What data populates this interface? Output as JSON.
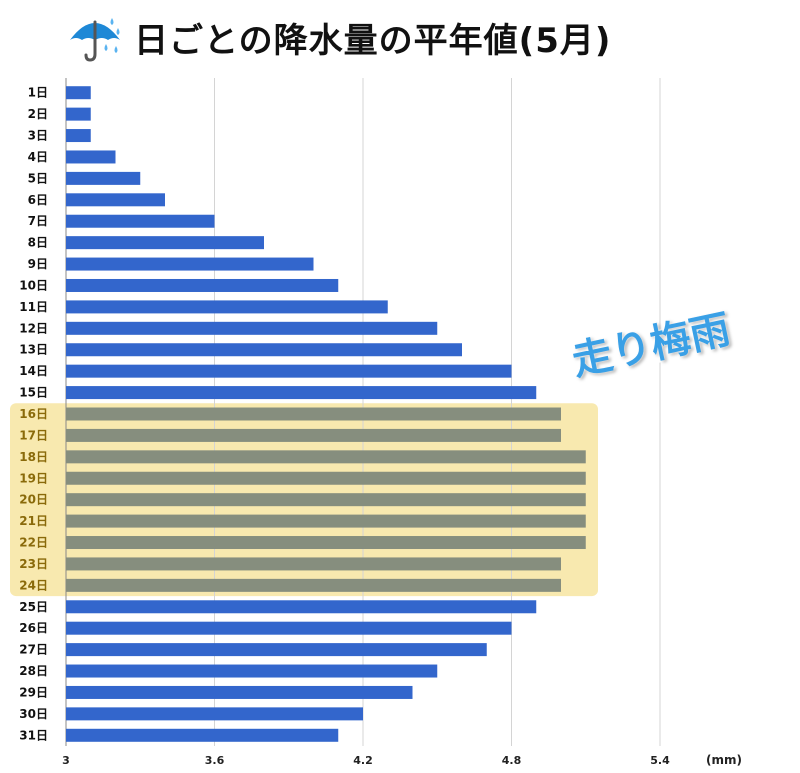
{
  "header": {
    "title": "日ごとの降水量の平年値(5月)"
  },
  "icons": {
    "umbrella": "umbrella-rain-icon"
  },
  "colors": {
    "bar": "#3366cc",
    "bar_highlight": "#868e7e",
    "highlight_bg": "#f7e7a6",
    "badge": "#3aa0e6"
  },
  "annotation": {
    "text": "走り梅雨"
  },
  "chart_data": {
    "type": "bar",
    "orientation": "horizontal",
    "title": "日ごとの降水量の平年値(5月)",
    "unit": "(mm)",
    "xlim": [
      3,
      5.4
    ],
    "xticks": [
      "3",
      "3.6",
      "4.2",
      "4.8",
      "5.4"
    ],
    "grid": true,
    "highlight_range": [
      "16日",
      "24日"
    ],
    "categories": [
      "1日",
      "2日",
      "3日",
      "4日",
      "5日",
      "6日",
      "7日",
      "8日",
      "9日",
      "10日",
      "11日",
      "12日",
      "13日",
      "14日",
      "15日",
      "16日",
      "17日",
      "18日",
      "19日",
      "20日",
      "21日",
      "22日",
      "23日",
      "24日",
      "25日",
      "26日",
      "27日",
      "28日",
      "29日",
      "30日",
      "31日"
    ],
    "values": [
      3.1,
      3.1,
      3.1,
      3.2,
      3.3,
      3.4,
      3.6,
      3.8,
      4.0,
      4.1,
      4.3,
      4.5,
      4.6,
      4.8,
      4.9,
      5.0,
      5.0,
      5.1,
      5.1,
      5.1,
      5.1,
      5.1,
      5.0,
      5.0,
      4.9,
      4.8,
      4.7,
      4.5,
      4.4,
      4.2,
      4.1
    ]
  }
}
